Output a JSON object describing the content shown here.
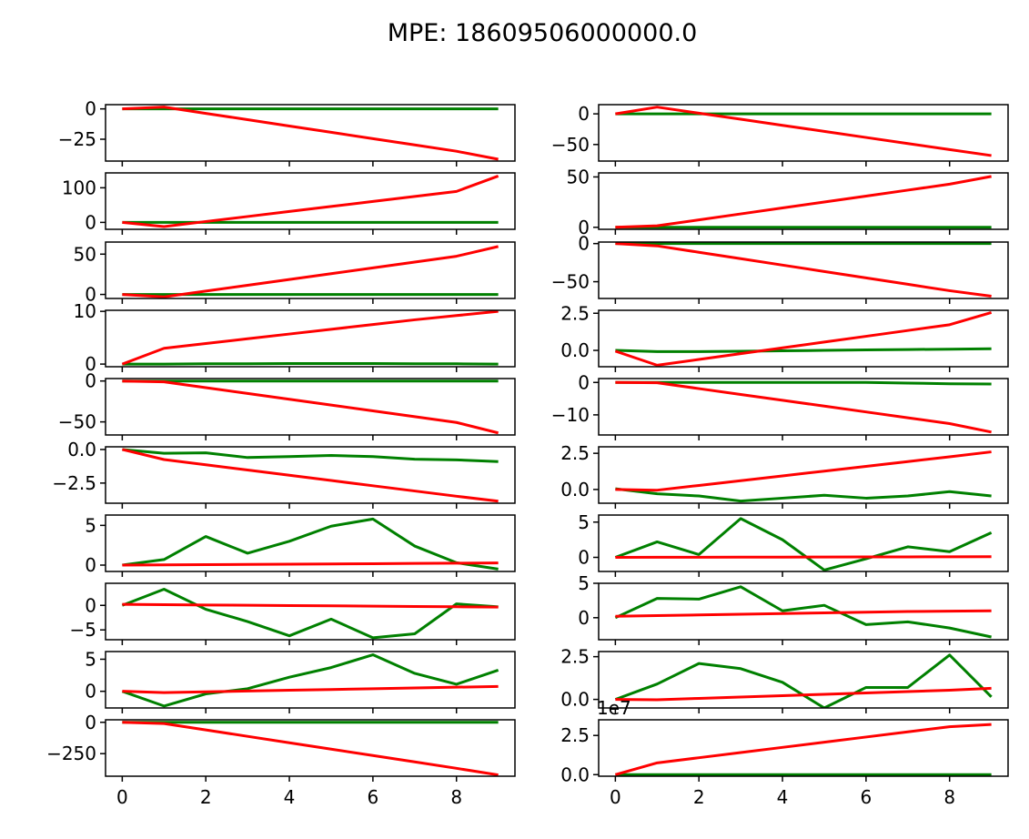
{
  "figure": {
    "title": "MPE: 18609506000000.0",
    "colors": {
      "green": "#008000",
      "red": "#ff0000"
    }
  },
  "chart_data": [
    {
      "type": "line",
      "x": [
        0,
        1,
        2,
        3,
        4,
        5,
        6,
        7,
        8,
        9
      ],
      "ylim": [
        -43,
        3.5
      ],
      "yticks": [
        0,
        -25
      ],
      "ytick_labels": [
        "0",
        "−25"
      ],
      "series": [
        {
          "color": "green",
          "values": [
            0,
            0,
            0,
            0,
            0,
            0,
            0,
            0,
            0,
            0
          ]
        },
        {
          "color": "red",
          "values": [
            0,
            1.5,
            -3.7,
            -8.9,
            -14.1,
            -19.3,
            -24.5,
            -29.7,
            -34.9,
            -41.5
          ]
        }
      ]
    },
    {
      "type": "line",
      "x": [
        0,
        1,
        2,
        3,
        4,
        5,
        6,
        7,
        8,
        9
      ],
      "ylim": [
        -77,
        15
      ],
      "yticks": [
        0,
        -50
      ],
      "ytick_labels": [
        "0",
        "−50"
      ],
      "series": [
        {
          "color": "green",
          "values": [
            0,
            0,
            0,
            0,
            0,
            0,
            0,
            0,
            0,
            0
          ]
        },
        {
          "color": "red",
          "values": [
            0,
            11,
            1.1,
            -8.8,
            -18.7,
            -28.6,
            -38.5,
            -48.4,
            -58.3,
            -68
          ]
        }
      ]
    },
    {
      "type": "line",
      "x": [
        0,
        1,
        2,
        3,
        4,
        5,
        6,
        7,
        8,
        9
      ],
      "ylim": [
        -20,
        143
      ],
      "yticks": [
        100,
        0
      ],
      "ytick_labels": [
        "100",
        "0"
      ],
      "series": [
        {
          "color": "green",
          "values": [
            0,
            0,
            0,
            0,
            0,
            0,
            0,
            0,
            0,
            0
          ]
        },
        {
          "color": "red",
          "values": [
            0,
            -12,
            2.5,
            17,
            31.5,
            46,
            60.5,
            75,
            89.5,
            134
          ]
        }
      ]
    },
    {
      "type": "line",
      "x": [
        0,
        1,
        2,
        3,
        4,
        5,
        6,
        7,
        8,
        9
      ],
      "ylim": [
        -2,
        54
      ],
      "yticks": [
        50,
        0
      ],
      "ytick_labels": [
        "50",
        "0"
      ],
      "series": [
        {
          "color": "green",
          "values": [
            0,
            0,
            0,
            0,
            0,
            0,
            0,
            0,
            0,
            0
          ]
        },
        {
          "color": "red",
          "values": [
            0,
            1.5,
            7.4,
            13.3,
            19.2,
            25.1,
            31,
            36.9,
            42.8,
            50.5
          ]
        }
      ]
    },
    {
      "type": "line",
      "x": [
        0,
        1,
        2,
        3,
        4,
        5,
        6,
        7,
        8,
        9
      ],
      "ylim": [
        -5,
        65
      ],
      "yticks": [
        50,
        0
      ],
      "ytick_labels": [
        "50",
        "0"
      ],
      "series": [
        {
          "color": "green",
          "values": [
            0,
            0,
            0,
            0,
            0,
            0,
            0,
            0,
            0,
            0
          ]
        },
        {
          "color": "red",
          "values": [
            0,
            -3,
            4.2,
            11.4,
            18.6,
            25.8,
            33,
            40.2,
            47.4,
            59.5
          ]
        }
      ]
    },
    {
      "type": "line",
      "x": [
        0,
        1,
        2,
        3,
        4,
        5,
        6,
        7,
        8,
        9
      ],
      "ylim": [
        -72,
        2
      ],
      "yticks": [
        0,
        -50
      ],
      "ytick_labels": [
        "0",
        "−50"
      ],
      "series": [
        {
          "color": "green",
          "values": [
            0,
            0,
            0,
            0,
            0,
            0,
            0,
            0,
            0,
            0
          ]
        },
        {
          "color": "red",
          "values": [
            0,
            -3,
            -11.4,
            -19.8,
            -28.2,
            -36.6,
            -45,
            -53.4,
            -61.8,
            -69
          ]
        }
      ]
    },
    {
      "type": "line",
      "x": [
        0,
        1,
        2,
        3,
        4,
        5,
        6,
        7,
        8,
        9
      ],
      "ylim": [
        -0.5,
        10.2
      ],
      "yticks": [
        10,
        0
      ],
      "ytick_labels": [
        "10",
        "0"
      ],
      "series": [
        {
          "color": "green",
          "values": [
            0,
            0,
            0.05,
            0.05,
            0.1,
            0.1,
            0.1,
            0.05,
            0.05,
            0
          ]
        },
        {
          "color": "red",
          "values": [
            0,
            3,
            3.9,
            4.8,
            5.7,
            6.6,
            7.5,
            8.4,
            9.2,
            10
          ]
        }
      ]
    },
    {
      "type": "line",
      "x": [
        0,
        1,
        2,
        3,
        4,
        5,
        6,
        7,
        8,
        9
      ],
      "ylim": [
        -1.1,
        2.7
      ],
      "yticks": [
        2.5,
        0.0
      ],
      "ytick_labels": [
        "2.5",
        "0.0"
      ],
      "series": [
        {
          "color": "green",
          "values": [
            0,
            -0.08,
            -0.08,
            -0.06,
            -0.03,
            0,
            0.03,
            0.06,
            0.08,
            0.11
          ]
        },
        {
          "color": "red",
          "values": [
            -0.05,
            -1,
            -0.61,
            -0.22,
            0.17,
            0.56,
            0.95,
            1.34,
            1.73,
            2.55
          ]
        }
      ]
    },
    {
      "type": "line",
      "x": [
        0,
        1,
        2,
        3,
        4,
        5,
        6,
        7,
        8,
        9
      ],
      "ylim": [
        -66,
        3
      ],
      "yticks": [
        0,
        -50
      ],
      "ytick_labels": [
        "0",
        "−50"
      ],
      "series": [
        {
          "color": "green",
          "values": [
            0,
            0,
            0,
            0,
            0,
            0,
            0,
            0,
            0,
            0
          ]
        },
        {
          "color": "red",
          "values": [
            0,
            -1,
            -8.1,
            -15.2,
            -22.3,
            -29.4,
            -36.5,
            -43.6,
            -50.7,
            -63.5
          ]
        }
      ]
    },
    {
      "type": "line",
      "x": [
        0,
        1,
        2,
        3,
        4,
        5,
        6,
        7,
        8,
        9
      ],
      "ylim": [
        -16.2,
        1.2
      ],
      "yticks": [
        0,
        -10
      ],
      "ytick_labels": [
        "0",
        "−10"
      ],
      "series": [
        {
          "color": "green",
          "values": [
            0,
            0,
            0,
            0,
            0,
            0,
            0,
            -0.2,
            -0.4,
            -0.5
          ]
        },
        {
          "color": "red",
          "values": [
            0,
            -0.1,
            -1.9,
            -3.7,
            -5.5,
            -7.3,
            -9.1,
            -10.9,
            -12.7,
            -15.3
          ]
        }
      ]
    },
    {
      "type": "line",
      "x": [
        0,
        1,
        2,
        3,
        4,
        5,
        6,
        7,
        8,
        9
      ],
      "ylim": [
        -4.0,
        0.2
      ],
      "yticks": [
        0.0,
        -2.5
      ],
      "ytick_labels": [
        "0.0",
        "−2.5"
      ],
      "series": [
        {
          "color": "green",
          "values": [
            0,
            -0.28,
            -0.25,
            -0.6,
            -0.53,
            -0.44,
            -0.53,
            -0.72,
            -0.77,
            -0.9
          ]
        },
        {
          "color": "red",
          "values": [
            0,
            -0.75,
            -1.14,
            -1.53,
            -1.92,
            -2.31,
            -2.7,
            -3.09,
            -3.48,
            -3.85
          ]
        }
      ]
    },
    {
      "type": "line",
      "x": [
        0,
        1,
        2,
        3,
        4,
        5,
        6,
        7,
        8,
        9
      ],
      "ylim": [
        -0.95,
        2.95
      ],
      "yticks": [
        2.5,
        0.0
      ],
      "ytick_labels": [
        "2.5",
        "0.0"
      ],
      "series": [
        {
          "color": "green",
          "values": [
            0.05,
            -0.3,
            -0.45,
            -0.8,
            -0.6,
            -0.4,
            -0.6,
            -0.45,
            -0.15,
            -0.45
          ]
        },
        {
          "color": "red",
          "values": [
            0,
            -0.05,
            0.28,
            0.61,
            0.94,
            1.27,
            1.6,
            1.93,
            2.26,
            2.6
          ]
        }
      ]
    },
    {
      "type": "line",
      "x": [
        0,
        1,
        2,
        3,
        4,
        5,
        6,
        7,
        8,
        9
      ],
      "ylim": [
        -0.8,
        6.3
      ],
      "yticks": [
        5,
        0
      ],
      "ytick_labels": [
        "5",
        "0"
      ],
      "series": [
        {
          "color": "green",
          "values": [
            0,
            0.7,
            3.6,
            1.5,
            3,
            4.9,
            5.8,
            2.4,
            0.3,
            -0.5
          ]
        },
        {
          "color": "red",
          "values": [
            0,
            0.03,
            0.06,
            0.09,
            0.12,
            0.15,
            0.18,
            0.21,
            0.24,
            0.27
          ]
        }
      ]
    },
    {
      "type": "line",
      "x": [
        0,
        1,
        2,
        3,
        4,
        5,
        6,
        7,
        8,
        9
      ],
      "ylim": [
        -2.0,
        6.0
      ],
      "yticks": [
        5,
        0
      ],
      "ytick_labels": [
        "5",
        "0"
      ],
      "series": [
        {
          "color": "green",
          "values": [
            0,
            2.2,
            0.4,
            5.5,
            2.5,
            -1.8,
            -0.2,
            1.5,
            0.8,
            3.5
          ]
        },
        {
          "color": "red",
          "values": [
            0,
            0.01,
            0.02,
            0.03,
            0.04,
            0.05,
            0.06,
            0.07,
            0.08,
            0.1
          ]
        }
      ]
    },
    {
      "type": "line",
      "x": [
        0,
        1,
        2,
        3,
        4,
        5,
        6,
        7,
        8,
        9
      ],
      "ylim": [
        -7,
        4.5
      ],
      "yticks": [
        0,
        -5
      ],
      "ytick_labels": [
        "0",
        "−5"
      ],
      "series": [
        {
          "color": "green",
          "values": [
            0,
            3.3,
            -0.8,
            -3.3,
            -6.2,
            -2.8,
            -6.6,
            -5.8,
            0.3,
            -0.3
          ]
        },
        {
          "color": "red",
          "values": [
            0.2,
            0.14,
            0.08,
            0.02,
            -0.04,
            -0.1,
            -0.16,
            -0.22,
            -0.28,
            -0.35
          ]
        }
      ]
    },
    {
      "type": "line",
      "x": [
        0,
        1,
        2,
        3,
        4,
        5,
        6,
        7,
        8,
        9
      ],
      "ylim": [
        -3.2,
        5.0
      ],
      "yticks": [
        5,
        0
      ],
      "ytick_labels": [
        "5",
        "0"
      ],
      "series": [
        {
          "color": "green",
          "values": [
            0,
            2.8,
            2.7,
            4.5,
            1,
            1.8,
            -1,
            -0.6,
            -1.5,
            -2.8
          ]
        },
        {
          "color": "red",
          "values": [
            0.2,
            0.3,
            0.4,
            0.5,
            0.6,
            0.7,
            0.8,
            0.9,
            0.95,
            1
          ]
        }
      ]
    },
    {
      "type": "line",
      "x": [
        0,
        1,
        2,
        3,
        4,
        5,
        6,
        7,
        8,
        9
      ],
      "ylim": [
        -2.6,
        6.2
      ],
      "yticks": [
        5,
        0
      ],
      "ytick_labels": [
        "5",
        "0"
      ],
      "series": [
        {
          "color": "green",
          "values": [
            0,
            -2.3,
            -0.4,
            0.4,
            2.2,
            3.7,
            5.7,
            2.8,
            1.1,
            3.3
          ]
        },
        {
          "color": "red",
          "values": [
            0,
            -0.2,
            -0.08,
            0.04,
            0.16,
            0.28,
            0.4,
            0.52,
            0.64,
            0.75
          ]
        }
      ]
    },
    {
      "type": "line",
      "x": [
        0,
        1,
        2,
        3,
        4,
        5,
        6,
        7,
        8,
        9
      ],
      "ylim": [
        -0.5,
        2.8
      ],
      "yticks": [
        2.5,
        0.0
      ],
      "ytick_labels": [
        "2.5",
        "0.0"
      ],
      "series": [
        {
          "color": "green",
          "values": [
            0,
            0.9,
            2.1,
            1.8,
            1,
            -0.5,
            0.7,
            0.7,
            2.6,
            0.15
          ]
        },
        {
          "color": "red",
          "values": [
            0,
            -0.02,
            0.06,
            0.14,
            0.22,
            0.3,
            0.38,
            0.46,
            0.54,
            0.65
          ]
        }
      ]
    },
    {
      "type": "line",
      "x": [
        0,
        1,
        2,
        3,
        4,
        5,
        6,
        7,
        8,
        9
      ],
      "ylim": [
        -430,
        20
      ],
      "yticks": [
        0,
        -250
      ],
      "ytick_labels": [
        "0",
        "−250"
      ],
      "series": [
        {
          "color": "green",
          "values": [
            0,
            0,
            0,
            0,
            0,
            0,
            0,
            0,
            0,
            0
          ]
        },
        {
          "color": "red",
          "values": [
            0,
            -10,
            -61,
            -112,
            -163,
            -214,
            -265,
            -316,
            -367,
            -420
          ]
        }
      ]
    },
    {
      "type": "line",
      "x": [
        0,
        1,
        2,
        3,
        4,
        5,
        6,
        7,
        8,
        9
      ],
      "ylim": [
        -0.1,
        3.5
      ],
      "yticks": [
        2.5,
        0.0
      ],
      "ytick_labels": [
        "2.5",
        "0.0"
      ],
      "offset_label": "1e7",
      "series": [
        {
          "color": "green",
          "values": [
            0,
            0,
            0,
            0,
            0,
            0,
            0,
            0,
            0,
            0
          ]
        },
        {
          "color": "red",
          "values": [
            0,
            0.75,
            1.08,
            1.41,
            1.74,
            2.07,
            2.4,
            2.73,
            3.06,
            3.2
          ]
        }
      ]
    }
  ],
  "xaxis": {
    "ticks": [
      0,
      2,
      4,
      6,
      8
    ],
    "tick_labels": [
      "0",
      "2",
      "4",
      "6",
      "8"
    ]
  }
}
